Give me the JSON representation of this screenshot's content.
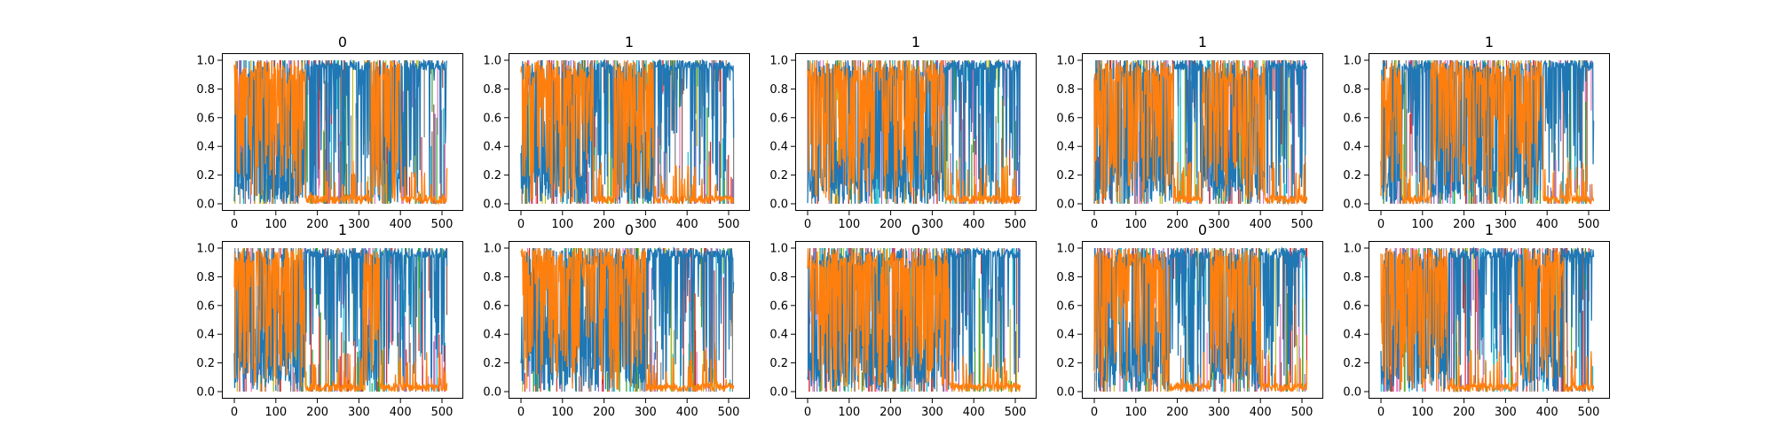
{
  "chart_data": {
    "type": "line",
    "layout": "2x5 grid of small multiples",
    "x_range": [
      0,
      512
    ],
    "ylim": [
      0.0,
      1.0
    ],
    "x_ticks": [
      "0",
      "100",
      "200",
      "300",
      "400",
      "500"
    ],
    "y_ticks": [
      "0.0",
      "0.2",
      "0.4",
      "0.6",
      "0.8",
      "1.0"
    ],
    "grid": false,
    "legend": "none",
    "series_colors": {
      "primary": "#1f77b4",
      "secondary": "#ff7f0e",
      "minor": [
        "#17becf",
        "#2ca02c",
        "#bcbd22",
        "#d62728",
        "#9467bd",
        "#e377c2",
        "#8c564b",
        "#7f7f7f"
      ]
    },
    "panels": [
      {
        "title": "0",
        "orange_regions": [
          [
            0,
            170
          ],
          [
            330,
            400
          ]
        ]
      },
      {
        "title": "1",
        "orange_regions": [
          [
            0,
            175
          ],
          [
            225,
            320
          ]
        ]
      },
      {
        "title": "1",
        "orange_regions": [
          [
            0,
            330
          ]
        ]
      },
      {
        "title": "1",
        "orange_regions": [
          [
            0,
            190
          ],
          [
            260,
            410
          ]
        ]
      },
      {
        "title": "1",
        "orange_regions": [
          [
            0,
            50
          ],
          [
            120,
            390
          ]
        ]
      },
      {
        "title": "1",
        "orange_regions": [
          [
            0,
            170
          ],
          [
            310,
            350
          ]
        ]
      },
      {
        "title": "0",
        "orange_regions": [
          [
            0,
            300
          ]
        ]
      },
      {
        "title": "0",
        "orange_regions": [
          [
            0,
            340
          ]
        ]
      },
      {
        "title": "0",
        "orange_regions": [
          [
            0,
            180
          ],
          [
            280,
            400
          ]
        ]
      },
      {
        "title": "1",
        "orange_regions": [
          [
            0,
            160
          ],
          [
            330,
            440
          ]
        ]
      }
    ]
  }
}
